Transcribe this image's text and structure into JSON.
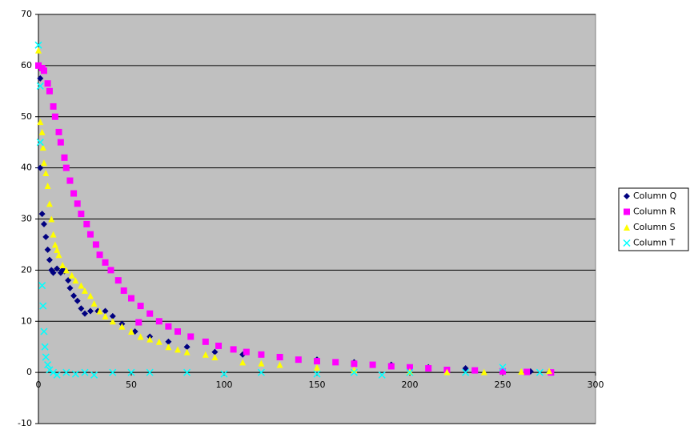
{
  "chart_data": {
    "type": "scatter",
    "xlim": [
      0,
      300
    ],
    "xticks": [
      0,
      50,
      100,
      150,
      200,
      250,
      300
    ],
    "ylim": [
      -10,
      70
    ],
    "yticks": [
      -10,
      0,
      10,
      20,
      30,
      40,
      50,
      60,
      70
    ],
    "grid": true,
    "legend": "right",
    "series": [
      {
        "name": "Column Q",
        "color": "#000080",
        "marker": "diamond",
        "x": [
          1,
          1,
          2,
          3,
          4,
          5,
          6,
          7,
          8,
          10,
          12,
          13,
          14,
          16,
          17,
          19,
          21,
          23,
          25,
          28,
          32,
          36,
          40,
          45,
          52,
          60,
          70,
          80,
          95,
          110,
          130,
          150,
          170,
          190,
          210,
          230,
          250,
          265,
          275
        ],
        "values": [
          57.5,
          40,
          31,
          29,
          26.5,
          24,
          22,
          20,
          19.5,
          20.3,
          19.5,
          20,
          19.8,
          18,
          16.5,
          15,
          14,
          12.5,
          11.5,
          12,
          12,
          12,
          11,
          9.5,
          8,
          7,
          6,
          5,
          4,
          3.5,
          3,
          2.5,
          2,
          1.5,
          1,
          0.8,
          0.5,
          0.2,
          0
        ]
      },
      {
        "name": "Column R",
        "color": "#ff00ff",
        "marker": "square",
        "x": [
          0,
          2,
          3,
          5,
          6,
          8,
          9,
          11,
          12,
          14,
          15,
          17,
          19,
          21,
          23,
          26,
          28,
          31,
          33,
          36,
          39,
          43,
          46,
          50,
          55,
          60,
          54,
          65,
          70,
          75,
          82,
          90,
          97,
          105,
          112,
          120,
          130,
          140,
          150,
          160,
          170,
          180,
          190,
          200,
          210,
          220,
          235,
          250,
          263,
          276
        ],
        "values": [
          60,
          59.5,
          59,
          56.5,
          55,
          52,
          50,
          47,
          45,
          42,
          40,
          37.5,
          35,
          33,
          31,
          29,
          27,
          25,
          23,
          21.5,
          20,
          18,
          16,
          14.5,
          13,
          11.5,
          9.8,
          10,
          9,
          8,
          7,
          6,
          5.2,
          4.5,
          4,
          3.5,
          3,
          2.5,
          2.2,
          2,
          1.7,
          1.5,
          1.2,
          1,
          0.8,
          0.5,
          0.4,
          0.2,
          0.1,
          0
        ]
      },
      {
        "name": "Column S",
        "color": "#ffff00",
        "marker": "triangle",
        "x": [
          0,
          1,
          2,
          2.5,
          3,
          4,
          5,
          6,
          7,
          8,
          9,
          10,
          11,
          13,
          15,
          18,
          20,
          23,
          25,
          28,
          30,
          33,
          36,
          40,
          45,
          50,
          55,
          60,
          65,
          70,
          75,
          80,
          90,
          95,
          110,
          120,
          130,
          150,
          170,
          200,
          220,
          240,
          260,
          275
        ],
        "values": [
          63,
          49,
          47,
          44,
          41,
          39,
          36.5,
          33,
          30,
          27,
          25,
          24,
          23,
          21,
          20,
          19,
          18,
          17,
          16,
          15,
          13.5,
          12,
          11,
          10,
          9,
          8,
          7,
          6.5,
          6,
          5,
          4.5,
          4,
          3.5,
          3,
          2,
          1.8,
          1.5,
          1,
          0.5,
          0.2,
          0.1,
          0.1,
          0.2,
          0.3
        ]
      },
      {
        "name": "Column T",
        "color": "#00ffff",
        "marker": "cross",
        "x": [
          0,
          1,
          1,
          2,
          2.5,
          3,
          3.5,
          4,
          5,
          6,
          8,
          10,
          15,
          20,
          25,
          30,
          40,
          50,
          60,
          80,
          100,
          120,
          150,
          170,
          185,
          200,
          230,
          250,
          270
        ],
        "values": [
          64,
          56,
          45,
          17,
          13,
          8,
          5,
          3,
          1.5,
          0.5,
          0,
          -0.5,
          0,
          -0.3,
          0,
          -0.5,
          0,
          0,
          0,
          0,
          -0.3,
          0,
          -0.3,
          0,
          -0.5,
          0,
          0,
          1,
          0
        ]
      }
    ]
  }
}
